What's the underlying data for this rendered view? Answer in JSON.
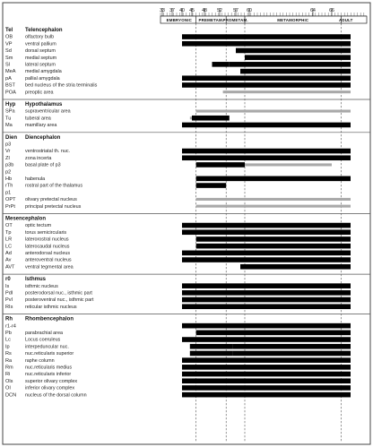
{
  "chart_data": {
    "type": "bar",
    "x_ticks": [
      33,
      37,
      40,
      45,
      48,
      52,
      57,
      60,
      64,
      66
    ],
    "stages": [
      {
        "label": "EMBRYONIC",
        "from": 33,
        "to": 46
      },
      {
        "label": "PREMETAM.",
        "from": 46,
        "to": 54
      },
      {
        "label": "PROMETAM.",
        "from": 54,
        "to": 59
      },
      {
        "label": "METAMORPHIC",
        "from": 59,
        "to": 67
      },
      {
        "label": "ADULT",
        "from": 67,
        "to": 68
      }
    ],
    "legend": {
      "black": "",
      "gray": ""
    },
    "sections": [
      {
        "abbr": "Tel",
        "name": "Telencephalon",
        "rows": [
          {
            "abbr": "OB",
            "name": "olfactory bulb",
            "bars": [
              {
                "color": "black",
                "from": 40,
                "to": 68
              }
            ]
          },
          {
            "abbr": "VP",
            "name": "ventral pallium",
            "bars": [
              {
                "color": "black",
                "from": 40,
                "to": 59
              },
              {
                "color": "black",
                "from": 59,
                "to": 68
              }
            ]
          },
          {
            "abbr": "Sd",
            "name": "dorsal septum",
            "bars": [
              {
                "color": "black",
                "from": 57,
                "to": 68
              }
            ]
          },
          {
            "abbr": "Sm",
            "name": "medial septum",
            "bars": [
              {
                "color": "black",
                "from": 59,
                "to": 68
              }
            ]
          },
          {
            "abbr": "Sl",
            "name": "lateral septum",
            "bars": [
              {
                "color": "black",
                "from": 50,
                "to": 55
              },
              {
                "color": "black",
                "from": 55,
                "to": 68
              }
            ]
          },
          {
            "abbr": "MeA",
            "name": "medial amygdala",
            "bars": [
              {
                "color": "black",
                "from": 58,
                "to": 68
              }
            ]
          },
          {
            "abbr": "pA",
            "name": "pallial amygdala",
            "bars": [
              {
                "color": "black",
                "from": 40,
                "to": 68
              }
            ]
          },
          {
            "abbr": "BST",
            "name": "bed nucleus of the stria terminalis",
            "bars": [
              {
                "color": "black",
                "from": 40,
                "to": 68
              }
            ]
          },
          {
            "abbr": "POA",
            "name": "preoptic area",
            "bars": [
              {
                "color": "gray",
                "from": 53,
                "to": 68
              }
            ]
          }
        ]
      },
      {
        "abbr": "Hyp",
        "name": "Hypothalamus",
        "rows": [
          {
            "abbr": "SPa",
            "name": "supraventricular area",
            "bars": [
              {
                "color": "gray",
                "from": 46,
                "to": 68
              }
            ]
          },
          {
            "abbr": "Tu",
            "name": "tuberal area",
            "bars": [
              {
                "color": "gray",
                "from": 44,
                "to": 54
              },
              {
                "color": "black",
                "from": 45,
                "to": 55
              }
            ]
          },
          {
            "abbr": "Ma",
            "name": "mamillary area",
            "bars": [
              {
                "color": "black",
                "from": 40,
                "to": 68
              }
            ]
          }
        ]
      },
      {
        "abbr": "Dien",
        "name": "Diencephalon",
        "rows": [
          {
            "abbr": "p3",
            "name": "",
            "bars": []
          },
          {
            "abbr": "Vr",
            "name": "ventrostriatal th. nuc.",
            "bars": [
              {
                "color": "black",
                "from": 40,
                "to": 59
              },
              {
                "color": "black",
                "from": 59,
                "to": 68
              }
            ]
          },
          {
            "abbr": "ZI",
            "name": "zona incerta",
            "bars": [
              {
                "color": "black",
                "from": 40,
                "to": 68
              }
            ]
          },
          {
            "abbr": "p3b",
            "name": "basal plate of p3",
            "bars": [
              {
                "color": "black",
                "from": 46,
                "to": 59
              },
              {
                "color": "gray",
                "from": 59,
                "to": 66
              }
            ]
          },
          {
            "abbr": "p2",
            "name": "",
            "bars": []
          },
          {
            "abbr": "Hb",
            "name": "habenula",
            "bars": [
              {
                "color": "black",
                "from": 46,
                "to": 68
              }
            ]
          },
          {
            "abbr": "rTh",
            "name": "rostral part of the thalamus",
            "bars": [
              {
                "color": "black",
                "from": 46,
                "to": 54
              }
            ]
          },
          {
            "abbr": "p1",
            "name": "",
            "bars": []
          },
          {
            "abbr": "OPT",
            "name": "olivary pretectal nucleus",
            "bars": [
              {
                "color": "gray",
                "from": 46,
                "to": 68
              }
            ]
          },
          {
            "abbr": "PrPt",
            "name": "principal pretectal nucleus",
            "bars": [
              {
                "color": "gray",
                "from": 46,
                "to": 68
              }
            ]
          }
        ]
      },
      {
        "abbr": "Mesencephalon",
        "name": "",
        "rows": [
          {
            "abbr": "OT",
            "name": "optic tectum",
            "bars": [
              {
                "color": "black",
                "from": 40,
                "to": 68
              }
            ]
          },
          {
            "abbr": "Tp",
            "name": "torus semicircularis",
            "bars": [
              {
                "color": "black",
                "from": 40,
                "to": 68
              }
            ]
          },
          {
            "abbr": "LR",
            "name": "laterorostral nucleus",
            "bars": [
              {
                "color": "black",
                "from": 46,
                "to": 59
              },
              {
                "color": "black",
                "from": 59,
                "to": 68
              }
            ]
          },
          {
            "abbr": "LC",
            "name": "laterocaudal nucleus",
            "bars": [
              {
                "color": "black",
                "from": 46,
                "to": 59
              },
              {
                "color": "black",
                "from": 59,
                "to": 68
              }
            ]
          },
          {
            "abbr": "Ad",
            "name": "anterodorsal nucleus",
            "bars": [
              {
                "color": "black",
                "from": 40,
                "to": 59
              },
              {
                "color": "black",
                "from": 59,
                "to": 68
              }
            ]
          },
          {
            "abbr": "Av",
            "name": "anteroventral nucleus",
            "bars": [
              {
                "color": "black",
                "from": 40,
                "to": 59
              },
              {
                "color": "black",
                "from": 59,
                "to": 68
              }
            ]
          },
          {
            "abbr": "AVT",
            "name": "ventral tegmental area",
            "bars": [
              {
                "color": "black",
                "from": 58,
                "to": 68
              }
            ]
          }
        ]
      },
      {
        "abbr": "r0",
        "name": "Isthmus",
        "rows": [
          {
            "abbr": "Is",
            "name": "isthmic nucleus",
            "bars": [
              {
                "color": "black",
                "from": 40,
                "to": 68
              }
            ]
          },
          {
            "abbr": "PdI",
            "name": "posterodorsal nuc., isthmic part",
            "bars": [
              {
                "color": "black",
                "from": 40,
                "to": 59
              },
              {
                "color": "black",
                "from": 59,
                "to": 68
              }
            ]
          },
          {
            "abbr": "PvI",
            "name": "posteroventral nuc., isthmic part",
            "bars": [
              {
                "color": "black",
                "from": 40,
                "to": 59
              },
              {
                "color": "black",
                "from": 59,
                "to": 68
              }
            ]
          },
          {
            "abbr": "RIs",
            "name": "reticular isthmic nucleus",
            "bars": [
              {
                "color": "black",
                "from": 40,
                "to": 59
              },
              {
                "color": "black",
                "from": 59,
                "to": 68
              }
            ]
          }
        ]
      },
      {
        "abbr": "Rh",
        "name": "Rhombencephalon",
        "rows": [
          {
            "abbr": "r1-r4",
            "name": "",
            "bars": [
              {
                "color": "black",
                "from": 40,
                "to": 68
              }
            ]
          },
          {
            "abbr": "Pb",
            "name": "parabrachial area",
            "bars": [
              {
                "color": "black",
                "from": 46,
                "to": 68
              }
            ]
          },
          {
            "abbr": "Lc",
            "name": "Locus coeruleus",
            "bars": [
              {
                "color": "black",
                "from": 40,
                "to": 68
              }
            ]
          },
          {
            "abbr": "Ip",
            "name": "interpeduncular nuc.",
            "bars": [
              {
                "color": "black",
                "from": 44,
                "to": 56
              },
              {
                "color": "black",
                "from": 56,
                "to": 68
              }
            ]
          },
          {
            "abbr": "Rs",
            "name": "nuc.reticularis superior",
            "bars": [
              {
                "color": "black",
                "from": 44,
                "to": 56
              },
              {
                "color": "black",
                "from": 56,
                "to": 68
              }
            ]
          },
          {
            "abbr": "Ra",
            "name": "raphe column",
            "bars": [
              {
                "color": "black",
                "from": 40,
                "to": 59
              },
              {
                "color": "black",
                "from": 59,
                "to": 68
              }
            ]
          },
          {
            "abbr": "Rm",
            "name": "nuc.reticularis medius",
            "bars": [
              {
                "color": "black",
                "from": 40,
                "to": 59
              },
              {
                "color": "black",
                "from": 59,
                "to": 68
              }
            ]
          },
          {
            "abbr": "Ri",
            "name": "nuc.reticularis inferior",
            "bars": [
              {
                "color": "black",
                "from": 40,
                "to": 59
              },
              {
                "color": "black",
                "from": 59,
                "to": 68
              }
            ]
          },
          {
            "abbr": "Ols",
            "name": "superior olivary complex",
            "bars": [
              {
                "color": "black",
                "from": 40,
                "to": 68
              }
            ]
          },
          {
            "abbr": "OI",
            "name": "inferior olivary complex",
            "bars": [
              {
                "color": "black",
                "from": 40,
                "to": 68
              }
            ]
          },
          {
            "abbr": "DCN",
            "name": "nucleus of the dorsal column",
            "bars": [
              {
                "color": "black",
                "from": 40,
                "to": 68
              }
            ]
          }
        ]
      }
    ],
    "colors": {
      "black": "#000000",
      "gray": "#a9a9a9",
      "grid": "#555555",
      "frame": "#444444"
    }
  }
}
